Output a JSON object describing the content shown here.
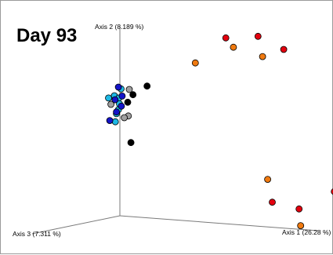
{
  "chart_data": {
    "type": "scatter",
    "title": "Day 93",
    "axes": {
      "axis1": "Axis 1 (26.28 %)",
      "axis2": "Axis 2 (8.189 %)",
      "axis3": "Axis 3 (7.311 %)"
    },
    "xlim": [
      -1,
      1
    ],
    "ylim": [
      -1,
      1
    ],
    "grid": false,
    "legend": "none",
    "series": [
      {
        "color": "#e3000f",
        "points": [
          [
            0.344,
            0.777
          ],
          [
            0.547,
            0.791
          ],
          [
            0.709,
            0.676
          ],
          [
            1.028,
            -0.574
          ],
          [
            0.637,
            -0.667
          ],
          [
            0.806,
            -0.726
          ]
        ]
      },
      {
        "color": "#f07a10",
        "points": [
          [
            0.392,
            0.695
          ],
          [
            0.576,
            0.613
          ],
          [
            0.152,
            0.557
          ],
          [
            0.608,
            -0.466
          ],
          [
            0.816,
            -0.873
          ]
        ]
      },
      {
        "color": "#000000",
        "points": [
          [
            -0.152,
            0.354
          ],
          [
            -0.241,
            0.278
          ],
          [
            -0.274,
            0.212
          ],
          [
            -0.254,
            -0.143
          ]
        ]
      },
      {
        "color": "#a0a0a0",
        "points": [
          [
            -0.264,
            0.324
          ],
          [
            -0.38,
            0.193
          ],
          [
            -0.27,
            0.091
          ],
          [
            -0.296,
            0.076
          ]
        ]
      },
      {
        "color": "#1eb8e4",
        "points": [
          [
            -0.316,
            0.329
          ],
          [
            -0.358,
            0.269
          ],
          [
            -0.33,
            0.249
          ],
          [
            -0.395,
            0.249
          ],
          [
            -0.326,
            0.197
          ],
          [
            -0.333,
            0.146
          ],
          [
            -0.345,
            0.111
          ],
          [
            -0.352,
            0.04
          ]
        ]
      },
      {
        "color": "#1414c8",
        "points": [
          [
            -0.333,
            0.345
          ],
          [
            -0.309,
            0.266
          ],
          [
            -0.354,
            0.234
          ],
          [
            -0.314,
            0.177
          ],
          [
            -0.345,
            0.126
          ],
          [
            -0.387,
            0.051
          ]
        ]
      }
    ]
  }
}
